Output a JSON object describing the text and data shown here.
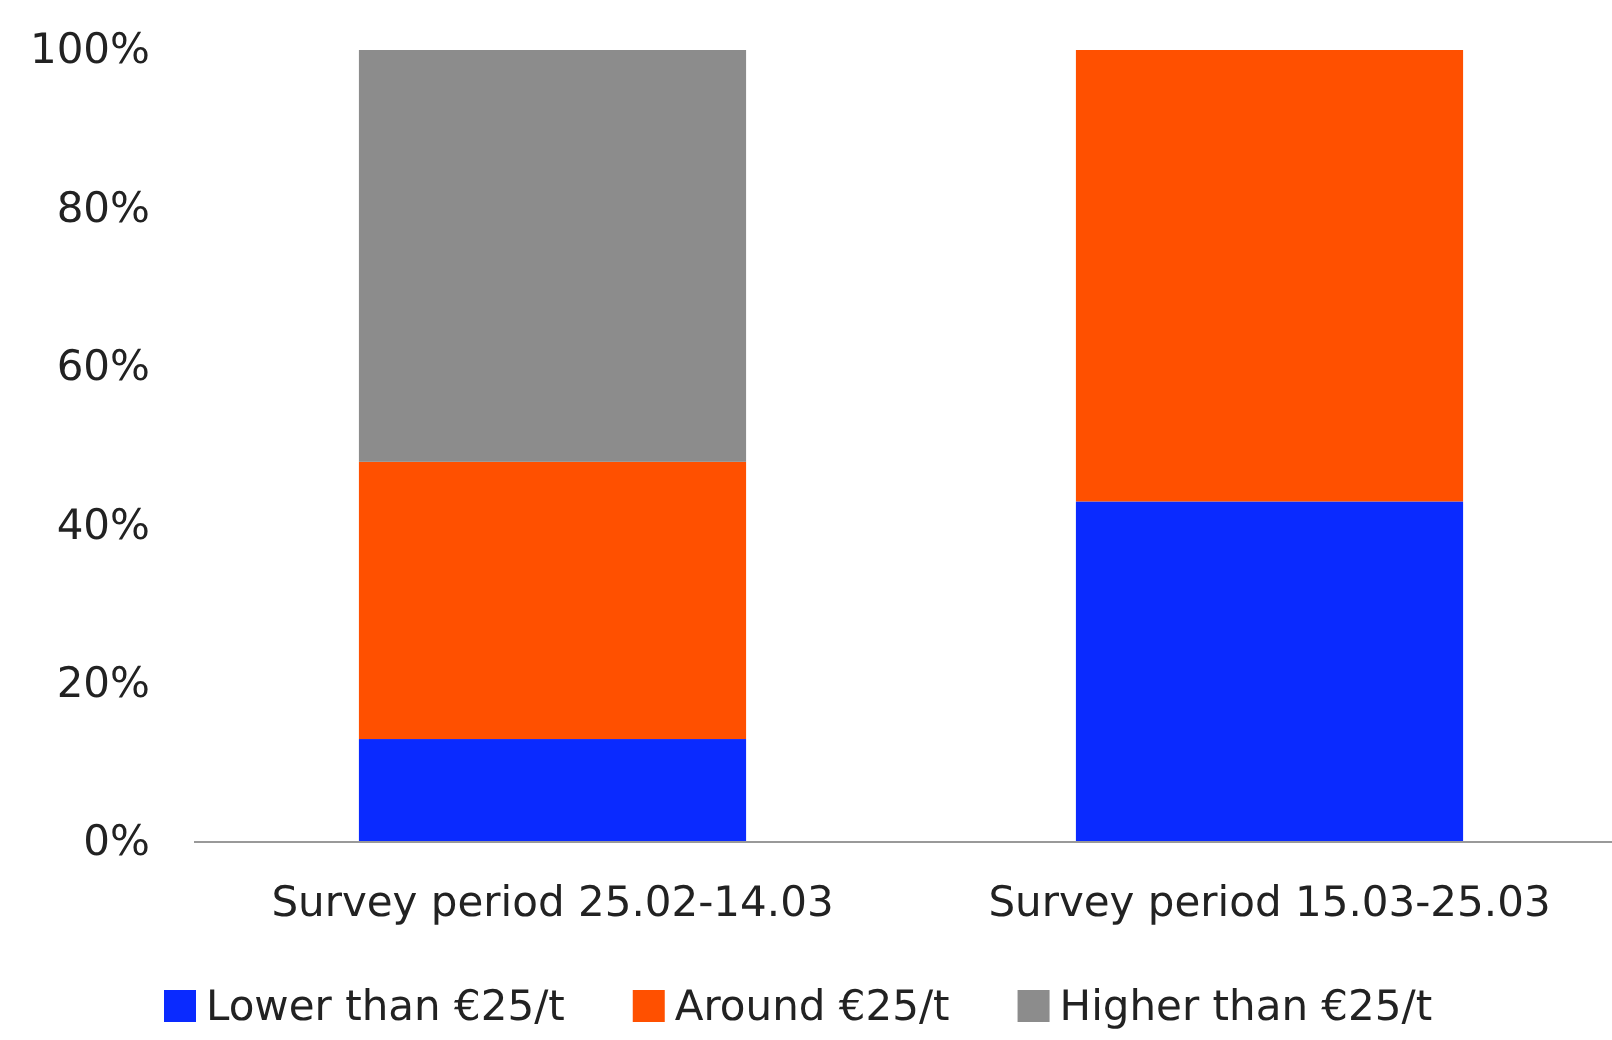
{
  "chart_data": {
    "type": "bar",
    "stacked": true,
    "categories": [
      "Survey period 25.02-14.03",
      "Survey period 15.03-25.03"
    ],
    "series": [
      {
        "name": "Lower than €25/t",
        "color": "#0a2aff",
        "values": [
          13,
          43
        ]
      },
      {
        "name": "Around €25/t",
        "color": "#ff5000",
        "values": [
          35,
          57
        ]
      },
      {
        "name": "Higher than €25/t",
        "color": "#8c8c8c",
        "values": [
          52,
          0
        ]
      }
    ],
    "ylim": [
      0,
      100
    ],
    "yticks": [
      {
        "value": 0,
        "label": "0%"
      },
      {
        "value": 20,
        "label": "20%"
      },
      {
        "value": 40,
        "label": "40%"
      },
      {
        "value": 60,
        "label": "60%"
      },
      {
        "value": 80,
        "label": "80%"
      },
      {
        "value": 100,
        "label": "100%"
      }
    ],
    "grid": false,
    "legend": "bottom"
  }
}
